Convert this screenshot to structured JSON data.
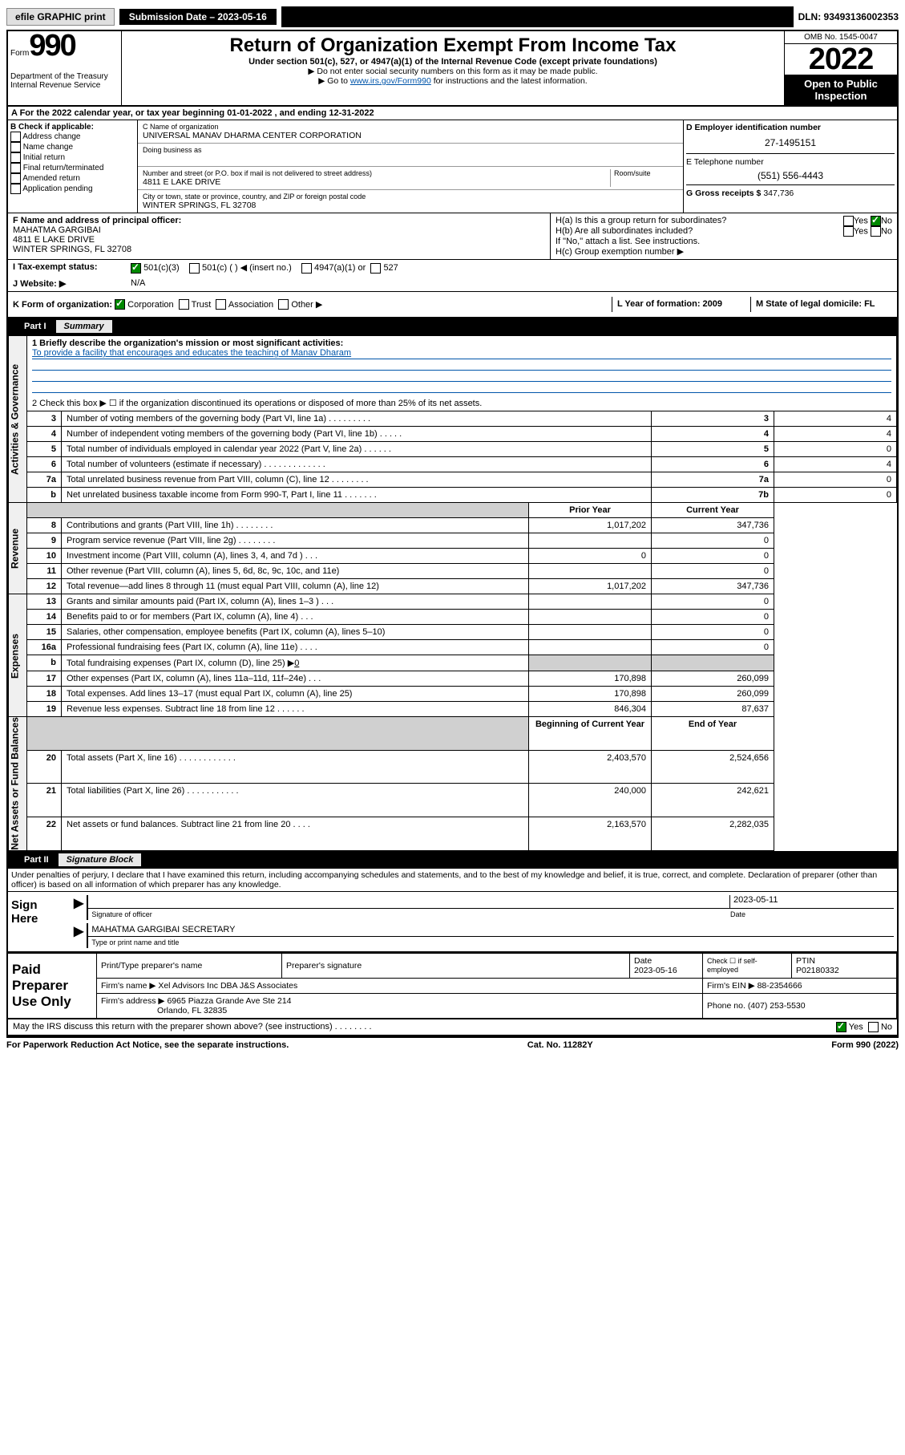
{
  "topbar": {
    "efile": "efile GRAPHIC print",
    "submission_label": "Submission Date – 2023-05-16",
    "dln": "DLN: 93493136002353"
  },
  "header": {
    "form_word": "Form",
    "form_num": "990",
    "dept": "Department of the Treasury",
    "irs": "Internal Revenue Service",
    "title": "Return of Organization Exempt From Income Tax",
    "subtitle": "Under section 501(c), 527, or 4947(a)(1) of the Internal Revenue Code (except private foundations)",
    "note1": "▶ Do not enter social security numbers on this form as it may be made public.",
    "note2_pre": "▶ Go to ",
    "note2_link": "www.irs.gov/Form990",
    "note2_post": " for instructions and the latest information.",
    "omb": "OMB No. 1545-0047",
    "year": "2022",
    "open": "Open to Public Inspection"
  },
  "row_a": "A For the 2022 calendar year, or tax year beginning 01-01-2022    , and ending 12-31-2022",
  "col_b": {
    "label": "B Check if applicable:",
    "items": [
      "Address change",
      "Name change",
      "Initial return",
      "Final return/terminated",
      "Amended return",
      "Application pending"
    ]
  },
  "col_c": {
    "name_label": "C Name of organization",
    "name": "UNIVERSAL MANAV DHARMA CENTER CORPORATION",
    "dba_label": "Doing business as",
    "addr_label": "Number and street (or P.O. box if mail is not delivered to street address)",
    "room_label": "Room/suite",
    "addr": "4811 E LAKE DRIVE",
    "city_label": "City or town, state or province, country, and ZIP or foreign postal code",
    "city": "WINTER SPRINGS, FL  32708"
  },
  "col_d": {
    "ein_label": "D Employer identification number",
    "ein": "27-1495151",
    "phone_label": "E Telephone number",
    "phone": "(551) 556-4443",
    "gross_label": "G Gross receipts $",
    "gross": "347,736"
  },
  "row_f": {
    "label": "F Name and address of principal officer:",
    "name": "MAHATMA GARGIBAI",
    "addr": "4811 E LAKE DRIVE",
    "city": "WINTER SPRINGS, FL  32708"
  },
  "row_h": {
    "ha": "H(a)  Is this a group return for subordinates?",
    "hb": "H(b)  Are all subordinates included?",
    "hb_note": "If \"No,\" attach a list. See instructions.",
    "hc": "H(c)  Group exemption number ▶",
    "yes": "Yes",
    "no": "No"
  },
  "row_i": {
    "label": "I    Tax-exempt status:",
    "o1": "501(c)(3)",
    "o2": "501(c) (   ) ◀ (insert no.)",
    "o3": "4947(a)(1) or",
    "o4": "527"
  },
  "row_j": {
    "label": "J    Website: ▶",
    "val": "N/A"
  },
  "row_k": {
    "label": "K Form of organization:",
    "o1": "Corporation",
    "o2": "Trust",
    "o3": "Association",
    "o4": "Other ▶"
  },
  "row_l": "L Year of formation: 2009",
  "row_m": "M State of legal domicile: FL",
  "part1": {
    "label": "Part I",
    "title": "Summary"
  },
  "vert_labels": {
    "gov": "Activities & Governance",
    "rev": "Revenue",
    "exp": "Expenses",
    "net": "Net Assets or Fund Balances"
  },
  "summary": {
    "l1_label": "1  Briefly describe the organization's mission or most significant activities:",
    "l1_val": "To provide a facility that encourages and educates the teaching of Manav Dharam",
    "l2": "2    Check this box ▶ ☐  if the organization discontinued its operations or disposed of more than 25% of its net assets.",
    "l3": "Number of voting members of the governing body (Part VI, line 1a)   .    .    .    .    .    .    .    .    .",
    "l4": "Number of independent voting members of the governing body (Part VI, line 1b)   .    .    .    .    .",
    "l5": "Total number of individuals employed in calendar year 2022 (Part V, line 2a)   .    .    .    .    .    .",
    "l6": "Total number of volunteers (estimate if necessary)   .    .    .    .    .    .    .    .    .    .    .    .    .",
    "l7a": "Total unrelated business revenue from Part VIII, column (C), line 12   .    .    .    .    .    .    .    .",
    "l7b": "Net unrelated business taxable income from Form 990-T, Part I, line 11   .    .    .    .    .    .    .",
    "prior": "Prior Year",
    "current": "Current Year",
    "l8": "Contributions and grants (Part VIII, line 1h)   .    .    .    .    .    .    .    .",
    "l9": "Program service revenue (Part VIII, line 2g)   .    .    .    .    .    .    .    .",
    "l10": "Investment income (Part VIII, column (A), lines 3, 4, and 7d )   .    .    .",
    "l11": "Other revenue (Part VIII, column (A), lines 5, 6d, 8c, 9c, 10c, and 11e)",
    "l12": "Total revenue—add lines 8 through 11 (must equal Part VIII, column (A), line 12)",
    "l13": "Grants and similar amounts paid (Part IX, column (A), lines 1–3 )   .    .    .",
    "l14": "Benefits paid to or for members (Part IX, column (A), line 4)   .    .    .",
    "l15": "Salaries, other compensation, employee benefits (Part IX, column (A), lines 5–10)",
    "l16a": "Professional fundraising fees (Part IX, column (A), line 11e)   .    .    .    .",
    "l16b_pre": "Total fundraising expenses (Part IX, column (D), line 25) ▶",
    "l16b_val": "0",
    "l17": "Other expenses (Part IX, column (A), lines 11a–11d, 11f–24e)   .    .    .",
    "l18": "Total expenses. Add lines 13–17 (must equal Part IX, column (A), line 25)",
    "l19": "Revenue less expenses. Subtract line 18 from line 12   .    .    .    .    .    .",
    "begin": "Beginning of Current Year",
    "end": "End of Year",
    "l20": "Total assets (Part X, line 16)   .    .    .    .    .    .    .    .    .    .    .    .",
    "l21": "Total liabilities (Part X, line 26)   .    .    .    .    .    .    .    .    .    .    .",
    "l22": "Net assets or fund balances. Subtract line 21 from line 20   .    .    .    .",
    "vals": {
      "3": "4",
      "4": "4",
      "5": "0",
      "6": "4",
      "7a": "0",
      "7b": "0",
      "8p": "1,017,202",
      "8c": "347,736",
      "9c": "0",
      "10p": "0",
      "10c": "0",
      "11c": "0",
      "12p": "1,017,202",
      "12c": "347,736",
      "13c": "0",
      "14c": "0",
      "15c": "0",
      "16c": "0",
      "17p": "170,898",
      "17c": "260,099",
      "18p": "170,898",
      "18c": "260,099",
      "19p": "846,304",
      "19c": "87,637",
      "20b": "2,403,570",
      "20e": "2,524,656",
      "21b": "240,000",
      "21e": "242,621",
      "22b": "2,163,570",
      "22e": "2,282,035"
    }
  },
  "part2": {
    "label": "Part II",
    "title": "Signature Block"
  },
  "penalties": "Under penalties of perjury, I declare that I have examined this return, including accompanying schedules and statements, and to the best of my knowledge and belief, it is true, correct, and complete. Declaration of preparer (other than officer) is based on all information of which preparer has any knowledge.",
  "sign": {
    "here": "Sign Here",
    "sig_label": "Signature of officer",
    "date_label": "Date",
    "date": "2023-05-11",
    "name": "MAHATMA GARGIBAI  SECRETARY",
    "name_label": "Type or print name and title"
  },
  "paid": {
    "label": "Paid Preparer Use Only",
    "h1": "Print/Type preparer's name",
    "h2": "Preparer's signature",
    "h3": "Date",
    "date": "2023-05-16",
    "check_label": "Check ☐ if self-employed",
    "ptin_label": "PTIN",
    "ptin": "P02180332",
    "firm_name_label": "Firm's name    ▶",
    "firm_name": "Xel Advisors Inc DBA J&S Associates",
    "firm_ein_label": "Firm's EIN ▶",
    "firm_ein": "88-2354666",
    "firm_addr_label": "Firm's address ▶",
    "firm_addr1": "6965 Piazza Grande Ave Ste 214",
    "firm_addr2": "Orlando, FL  32835",
    "phone_label": "Phone no.",
    "phone": "(407) 253-5530"
  },
  "discuss": "May the IRS discuss this return with the preparer shown above? (see instructions)   .    .    .    .    .    .    .    .",
  "footer": {
    "left": "For Paperwork Reduction Act Notice, see the separate instructions.",
    "center": "Cat. No. 11282Y",
    "right": "Form 990 (2022)"
  }
}
